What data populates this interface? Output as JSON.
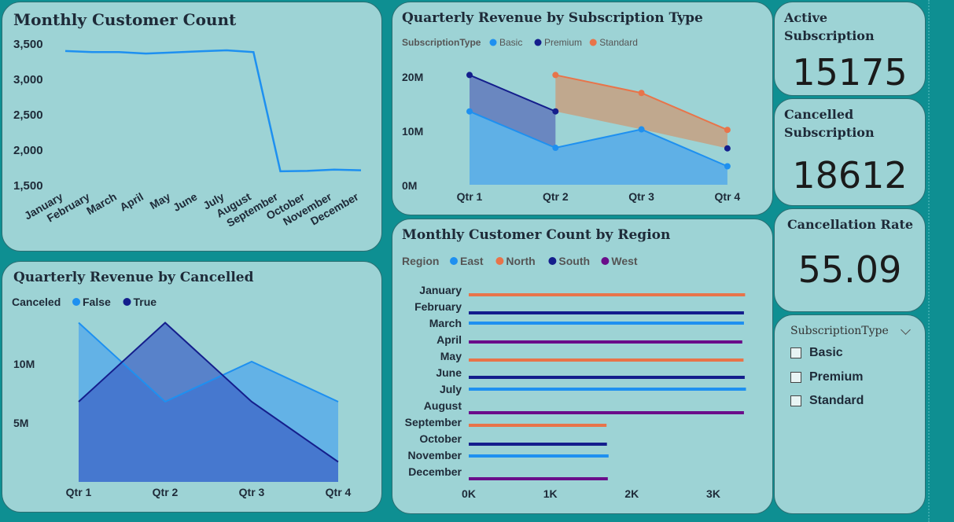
{
  "kpis": {
    "active": {
      "label": "Active Subscription",
      "value": "15175"
    },
    "cancelled": {
      "label": "Cancelled Subscription",
      "value": "18612"
    },
    "rate": {
      "label": "Cancellation Rate",
      "value": "55.09"
    }
  },
  "slicer": {
    "header": "SubscriptionType",
    "options": [
      "Basic",
      "Premium",
      "Standard"
    ]
  },
  "colors": {
    "basic": "#1e90f0",
    "premium": "#141e8c",
    "standard": "#e8744a",
    "east": "#1e90f0",
    "north": "#e8744a",
    "south": "#141e8c",
    "west": "#6a0d8a"
  },
  "chart_data": [
    {
      "id": "monthly_customer_count",
      "type": "line",
      "title": "Monthly Customer Count",
      "categories": [
        "January",
        "February",
        "March",
        "April",
        "May",
        "June",
        "July",
        "August",
        "September",
        "October",
        "November",
        "December"
      ],
      "values": [
        3390,
        3375,
        3375,
        3355,
        3370,
        3385,
        3400,
        3375,
        1690,
        1695,
        1715,
        1705
      ],
      "ylim": [
        1500,
        3500
      ],
      "yticks": [
        "3,500",
        "3,000",
        "2,500",
        "2,000",
        "1,500"
      ],
      "ytick_values": [
        3500,
        3000,
        2500,
        2000,
        1500
      ]
    },
    {
      "id": "quarterly_revenue_by_subscription",
      "type": "area",
      "title": "Quarterly Revenue by Subscription Type",
      "legend_title": "SubscriptionType",
      "categories": [
        "Qtr 1",
        "Qtr 2",
        "Qtr 3",
        "Qtr 4"
      ],
      "series": [
        {
          "name": "Basic",
          "values": [
            13.5,
            6.8,
            10.2,
            3.4
          ]
        },
        {
          "name": "Premium",
          "values": [
            20.2,
            13.5,
            null,
            6.7
          ]
        },
        {
          "name": "Standard",
          "values": [
            null,
            20.2,
            16.9,
            10.1
          ]
        }
      ],
      "ylim": [
        0,
        22
      ],
      "yticks": [
        "20M",
        "10M",
        "0M"
      ],
      "ytick_values": [
        20,
        10,
        0
      ]
    },
    {
      "id": "quarterly_revenue_by_cancelled",
      "type": "area",
      "title": "Quarterly Revenue by Cancelled",
      "legend_title": "Canceled",
      "categories": [
        "Qtr 1",
        "Qtr 2",
        "Qtr 3",
        "Qtr 4"
      ],
      "series": [
        {
          "name": "False",
          "values": [
            13.5,
            6.8,
            10.2,
            6.8
          ]
        },
        {
          "name": "True",
          "values": [
            6.8,
            13.5,
            6.8,
            1.7
          ]
        }
      ],
      "ylim": [
        0,
        15
      ],
      "yticks": [
        "10M",
        "5M"
      ],
      "ytick_values": [
        10,
        5
      ]
    },
    {
      "id": "monthly_customer_count_by_region",
      "type": "bar",
      "orientation": "horizontal",
      "title": "Monthly Customer Count by Region",
      "legend_title": "Region",
      "legend": [
        "East",
        "North",
        "South",
        "West"
      ],
      "categories": [
        "January",
        "February",
        "March",
        "April",
        "May",
        "June",
        "July",
        "August",
        "September",
        "October",
        "November",
        "December"
      ],
      "region": [
        "North",
        "South",
        "East",
        "West",
        "North",
        "South",
        "East",
        "West",
        "North",
        "South",
        "East",
        "West"
      ],
      "values": [
        3390,
        3375,
        3375,
        3355,
        3370,
        3385,
        3400,
        3375,
        1690,
        1695,
        1715,
        1705
      ],
      "xlim": [
        0,
        3600
      ],
      "xticks": [
        "0K",
        "1K",
        "2K",
        "3K"
      ],
      "xtick_values": [
        0,
        1000,
        2000,
        3000
      ]
    }
  ]
}
